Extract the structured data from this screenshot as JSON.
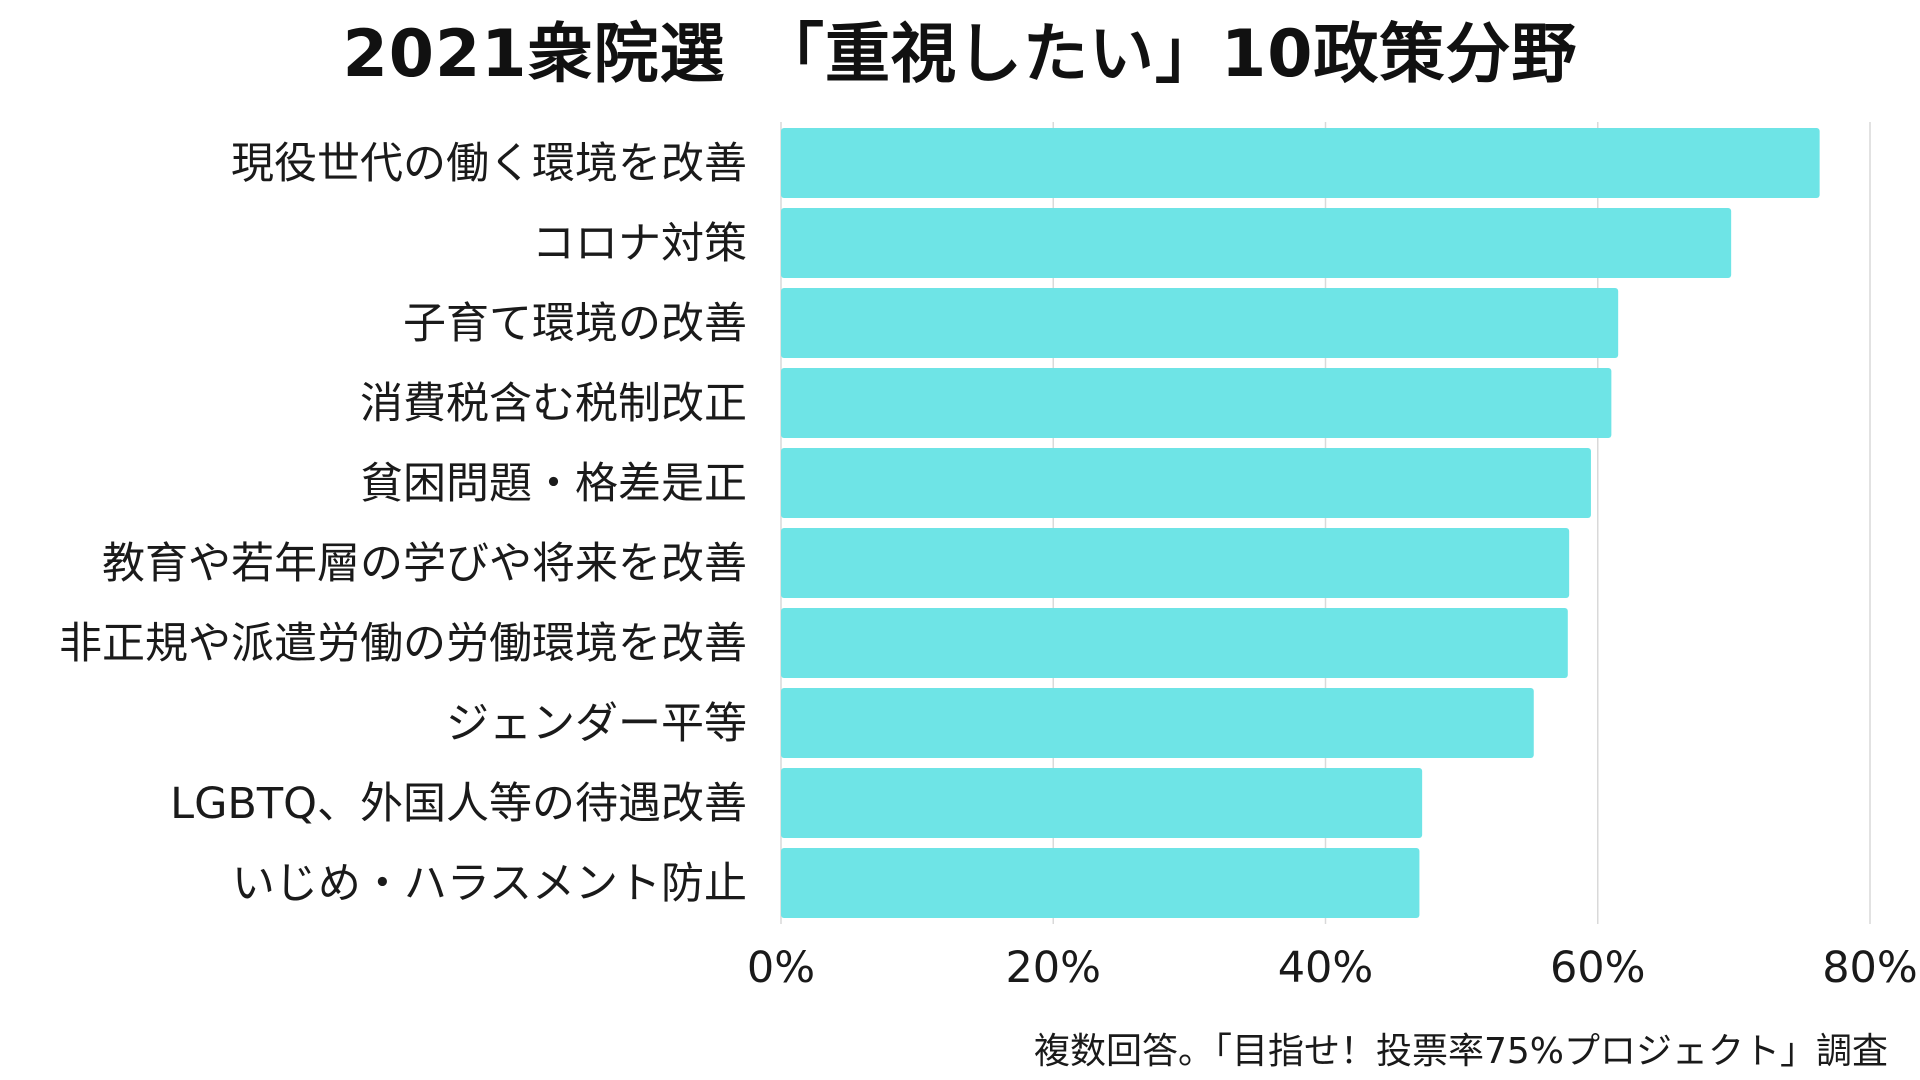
{
  "chart_data": {
    "type": "bar",
    "orientation": "horizontal",
    "title": "2021衆院選　「重視したい」10政策分野",
    "categories": [
      "現役世代の働く環境を改善",
      "コロナ対策",
      "子育て環境の改善",
      "消費税含む税制改正",
      "貧困問題・格差是正",
      "教育や若年層の学びや将来を改善",
      "非正規や派遣労働の労働環境を改善",
      "ジェンダー平等",
      "LGBTQ、外国人等の待遇改善",
      "いじめ・ハラスメント防止"
    ],
    "values": [
      76.3,
      69.8,
      61.5,
      61.0,
      59.5,
      57.9,
      57.8,
      55.3,
      47.1,
      46.9
    ],
    "xlim": [
      0,
      80
    ],
    "ticks": [
      "0%",
      "20%",
      "40%",
      "60%",
      "80%"
    ],
    "tick_values": [
      0,
      20,
      40,
      60,
      80
    ],
    "grid": true,
    "bar_color": "#6ee4e6",
    "note": "複数回答。「目指せ！投票率75%プロジェクト」調査"
  }
}
